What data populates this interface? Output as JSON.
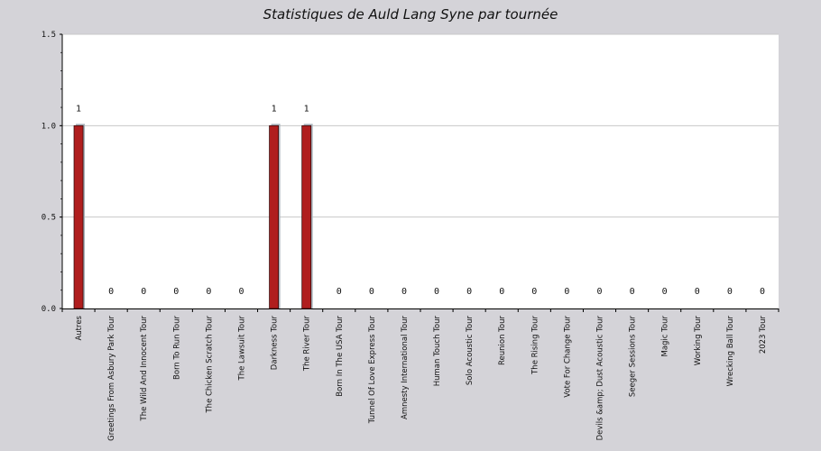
{
  "chart_data": {
    "type": "bar",
    "title": "Statistiques de Auld Lang Syne par tournée",
    "xlabel": "",
    "ylabel": "",
    "ylim": [
      0,
      1.5
    ],
    "yticks": [
      "0.0",
      "0.5",
      "1.0",
      "1.5"
    ],
    "grid": true,
    "categories": [
      "Autres",
      "Greetings From Asbury Park Tour",
      "The Wild And Innocent Tour",
      "Born To Run Tour",
      "The Chicken Scratch Tour",
      "The Lawsuit Tour",
      "Darkness Tour",
      "The River Tour",
      "Born In The USA Tour",
      "Tunnel Of Love Express Tour",
      "Amnesty International Tour",
      "Human Touch Tour",
      "Solo Acoustic Tour",
      "Reunion Tour",
      "The Rising Tour",
      "Vote For Change Tour",
      "Devils &amp; Dust Acoustic Tour",
      "Seeger Sessions Tour",
      "Magic Tour",
      "Working Tour",
      "Wrecking Ball Tour",
      "2023 Tour"
    ],
    "values": [
      1,
      0,
      0,
      0,
      0,
      0,
      1,
      1,
      0,
      0,
      0,
      0,
      0,
      0,
      0,
      0,
      0,
      0,
      0,
      0,
      0,
      0
    ],
    "colors": {
      "bar": "#b01e1e",
      "bar_shadow": "#a9b3bb",
      "plot_bg": "#ffffff",
      "page_bg": "#d4d3d8",
      "grid": "#c8c8c8"
    }
  }
}
